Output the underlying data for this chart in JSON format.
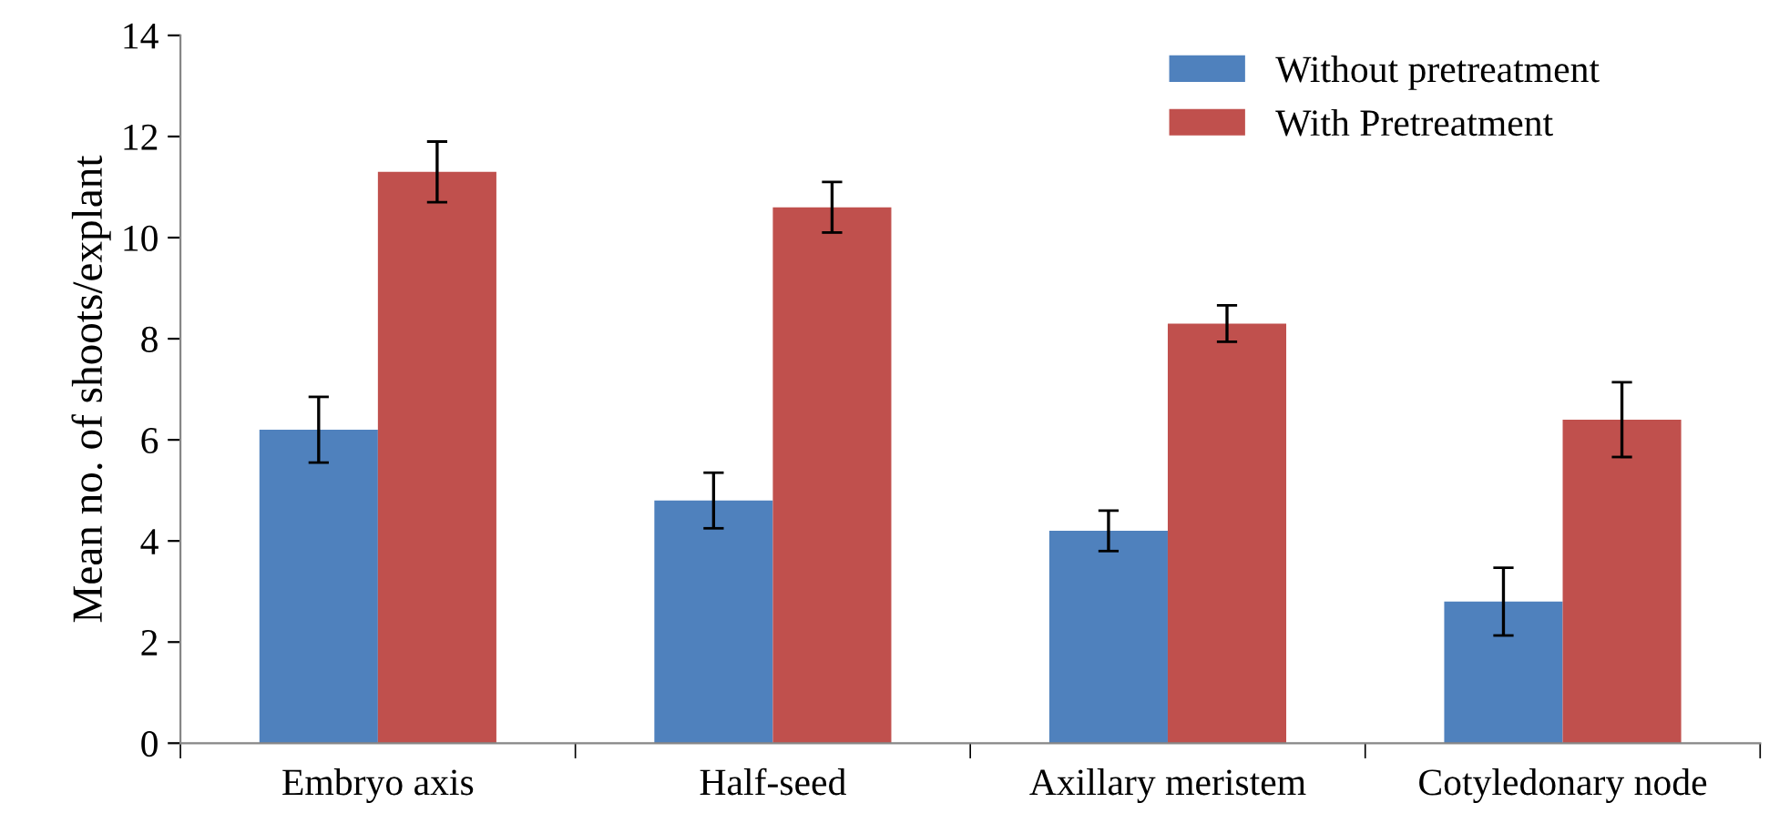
{
  "chart_data": {
    "type": "bar",
    "ylabel": "Mean no. of shoots/explant",
    "categories": [
      "Embryo axis",
      "Half-seed",
      "Axillary meristem",
      "Cotyledonary node"
    ],
    "series": [
      {
        "name": "Without pretreatment",
        "color": "#4f81bd",
        "values": [
          6.2,
          4.8,
          4.2,
          2.8
        ],
        "errors": [
          0.65,
          0.55,
          0.4,
          0.67
        ]
      },
      {
        "name": "With Pretreatment",
        "color": "#c0504d",
        "values": [
          11.3,
          10.6,
          8.3,
          6.4
        ],
        "errors": [
          0.6,
          0.5,
          0.36,
          0.74
        ]
      }
    ],
    "ylim": [
      0,
      14
    ],
    "yticks": [
      0,
      2,
      4,
      6,
      8,
      10,
      12,
      14
    ],
    "grid": false,
    "legend": "top right"
  }
}
